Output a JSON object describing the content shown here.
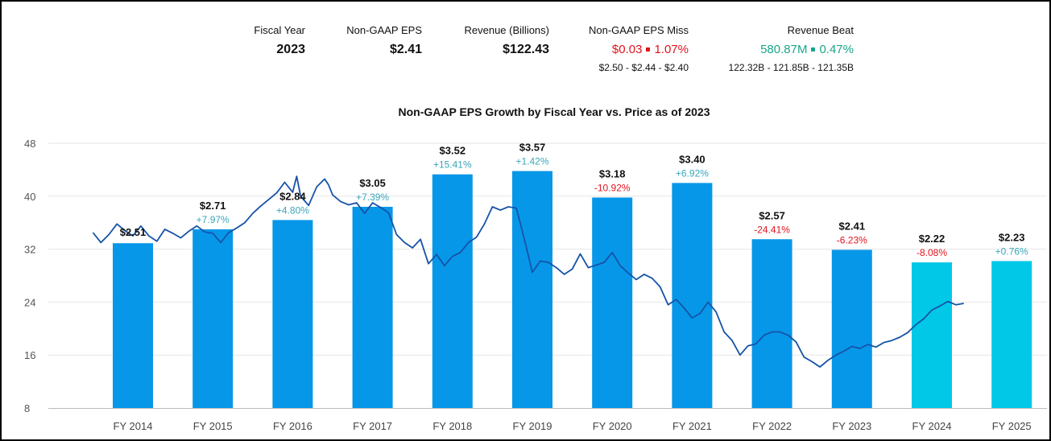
{
  "header": {
    "fiscal_year": {
      "label": "Fiscal Year",
      "value": "2023"
    },
    "eps": {
      "label": "Non-GAAP EPS",
      "value": "$2.41"
    },
    "revenue": {
      "label": "Revenue (Billions)",
      "value": "$122.43"
    },
    "eps_miss": {
      "label": "Non-GAAP EPS Miss",
      "amount": "$0.03",
      "percent": "1.07%",
      "range": "$2.50 - $2.44 - $2.40"
    },
    "revenue_beat": {
      "label": "Revenue Beat",
      "amount": "580.87M",
      "percent": "0.47%",
      "range": "122.32B - 121.85B - 121.35B"
    }
  },
  "colors": {
    "bar_actual": "#0797e8",
    "bar_estimate": "#00c8e6",
    "price_line": "#1553a8",
    "growth_positive": "#3aa6b9",
    "growth_negative": "#e0141e",
    "negative_text": "#e0141e",
    "positive_text": "#1aa58a"
  },
  "chart_data": {
    "type": "bar",
    "title": "Non-GAAP EPS Growth by Fiscal Year vs. Price as of 2023",
    "xlabel": "",
    "ylabel": "",
    "ylim": [
      8,
      48
    ],
    "yticks": [
      8,
      16,
      24,
      32,
      40,
      48
    ],
    "grid": true,
    "categories": [
      "FY 2014",
      "FY 2015",
      "FY 2016",
      "FY 2017",
      "FY 2018",
      "FY 2019",
      "FY 2020",
      "FY 2021",
      "FY 2022",
      "FY 2023",
      "FY 2024",
      "FY 2025"
    ],
    "eps_labels": [
      "$2.51",
      "$2.71",
      "$2.84",
      "$3.05",
      "$3.52",
      "$3.57",
      "$3.18",
      "$3.40",
      "$2.57",
      "$2.41",
      "$2.22",
      "$2.23"
    ],
    "growth_labels": [
      "",
      "+7.97%",
      "+4.80%",
      "+7.39%",
      "+15.41%",
      "+1.42%",
      "-10.92%",
      "+6.92%",
      "-24.41%",
      "-6.23%",
      "-8.08%",
      "+0.76%"
    ],
    "bar_heights": [
      32.9,
      35.0,
      36.4,
      38.4,
      43.3,
      43.8,
      39.8,
      42.0,
      33.5,
      31.9,
      30.0,
      30.2
    ],
    "bar_types": [
      "actual",
      "actual",
      "actual",
      "actual",
      "actual",
      "actual",
      "actual",
      "actual",
      "actual",
      "actual",
      "estimate",
      "estimate"
    ],
    "price_series": {
      "x": [
        2013.5,
        2013.6,
        2013.7,
        2013.8,
        2013.9,
        2014.0,
        2014.1,
        2014.2,
        2014.3,
        2014.4,
        2014.5,
        2014.6,
        2014.7,
        2014.8,
        2014.9,
        2015.0,
        2015.1,
        2015.2,
        2015.3,
        2015.4,
        2015.5,
        2015.6,
        2015.7,
        2015.8,
        2015.9,
        2016.0,
        2016.05,
        2016.1,
        2016.2,
        2016.3,
        2016.4,
        2016.45,
        2016.5,
        2016.6,
        2016.7,
        2016.8,
        2016.9,
        2017.0,
        2017.1,
        2017.2,
        2017.3,
        2017.4,
        2017.5,
        2017.6,
        2017.7,
        2017.8,
        2017.9,
        2018.0,
        2018.1,
        2018.2,
        2018.3,
        2018.4,
        2018.5,
        2018.6,
        2018.7,
        2018.8,
        2018.9,
        2019.0,
        2019.1,
        2019.2,
        2019.3,
        2019.4,
        2019.5,
        2019.6,
        2019.7,
        2019.8,
        2019.9,
        2020.0,
        2020.1,
        2020.2,
        2020.3,
        2020.4,
        2020.5,
        2020.6,
        2020.7,
        2020.8,
        2020.9,
        2021.0,
        2021.1,
        2021.2,
        2021.3,
        2021.4,
        2021.5,
        2021.6,
        2021.7,
        2021.8,
        2021.9,
        2022.0,
        2022.1,
        2022.2,
        2022.3,
        2022.4,
        2022.5,
        2022.6,
        2022.7,
        2022.8,
        2022.9,
        2023.0,
        2023.1,
        2023.2,
        2023.3,
        2023.4,
        2023.5,
        2023.6,
        2023.7,
        2023.8,
        2023.9,
        2024.0,
        2024.1,
        2024.2,
        2024.3,
        2024.4
      ],
      "y": [
        34.5,
        33.0,
        34.2,
        35.8,
        34.8,
        34.0,
        35.5,
        34.0,
        33.2,
        35.0,
        34.4,
        33.7,
        34.7,
        35.5,
        34.6,
        34.4,
        33.0,
        34.5,
        35.2,
        36.0,
        37.4,
        38.5,
        39.5,
        40.5,
        42.1,
        40.6,
        43.0,
        40.0,
        38.6,
        41.4,
        42.6,
        41.7,
        40.2,
        39.2,
        38.7,
        39.0,
        37.4,
        39.0,
        38.3,
        37.5,
        34.2,
        33.0,
        32.2,
        33.5,
        29.8,
        31.2,
        29.5,
        30.9,
        31.5,
        33.0,
        33.8,
        35.8,
        38.4,
        37.9,
        38.4,
        38.2,
        33.5,
        28.5,
        30.2,
        30.0,
        29.2,
        28.2,
        29.0,
        31.3,
        29.2,
        29.6,
        30.0,
        31.5,
        29.5,
        28.4,
        27.4,
        28.2,
        27.6,
        26.3,
        23.6,
        24.4,
        23.1,
        21.6,
        22.3,
        24.0,
        22.5,
        19.5,
        18.2,
        16.0,
        17.4,
        17.7,
        19.0,
        19.5,
        19.5,
        19.0,
        18.0,
        15.7,
        15.0,
        14.2,
        15.2,
        16.0,
        16.6,
        17.3,
        17.0,
        17.6,
        17.2,
        17.9,
        18.2,
        18.7,
        19.4,
        20.6,
        21.5,
        22.8,
        23.4,
        24.1,
        23.6,
        23.8
      ]
    }
  }
}
